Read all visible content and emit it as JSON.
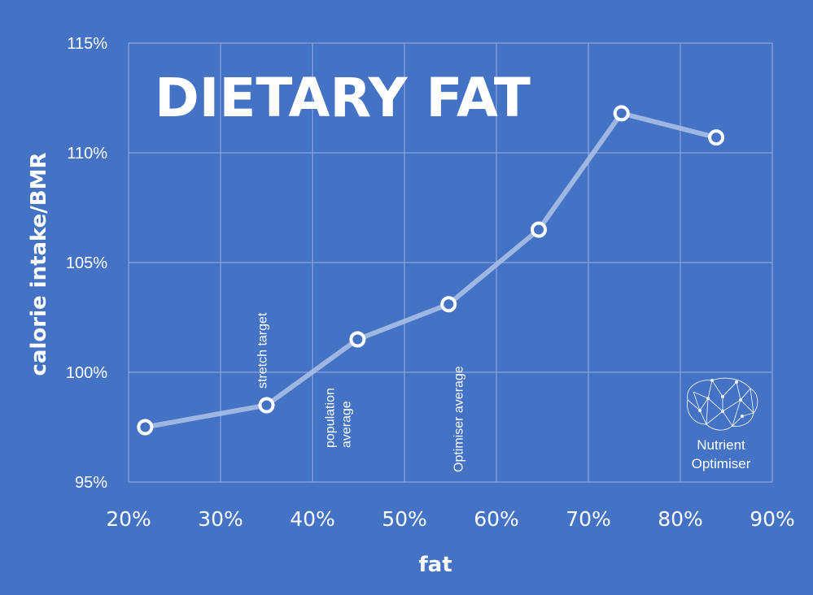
{
  "chart_data": {
    "type": "line",
    "title": "DIETARY FAT",
    "xlabel": "fat",
    "ylabel": "calorie intake/BMR",
    "xlim": [
      20,
      90
    ],
    "ylim": [
      95,
      115
    ],
    "x_ticks": [
      "20%",
      "30%",
      "40%",
      "50%",
      "60%",
      "70%",
      "80%",
      "90%"
    ],
    "y_ticks": [
      "95%",
      "100%",
      "105%",
      "110%",
      "115%"
    ],
    "grid": true,
    "series": [
      {
        "x": [
          21.8,
          35.0,
          44.9,
          54.8,
          64.6,
          73.6,
          83.9
        ],
        "y": [
          97.5,
          98.5,
          101.5,
          103.1,
          106.5,
          111.8,
          110.7
        ]
      }
    ],
    "annotations": [
      {
        "text": "stretch target",
        "x": 35
      },
      {
        "text": "population average",
        "x": 45
      },
      {
        "text": "Optimiser average",
        "x": 55
      }
    ],
    "colors": {
      "background": "#4472c4",
      "line": "#a9bfe6",
      "marker_fill": "#4472c4",
      "marker_stroke": "#ffffff",
      "grid": "#8aa6dc"
    }
  },
  "logo": {
    "icon": "brain-network-icon",
    "line1": "Nutrient",
    "line2": "Optimiser"
  }
}
